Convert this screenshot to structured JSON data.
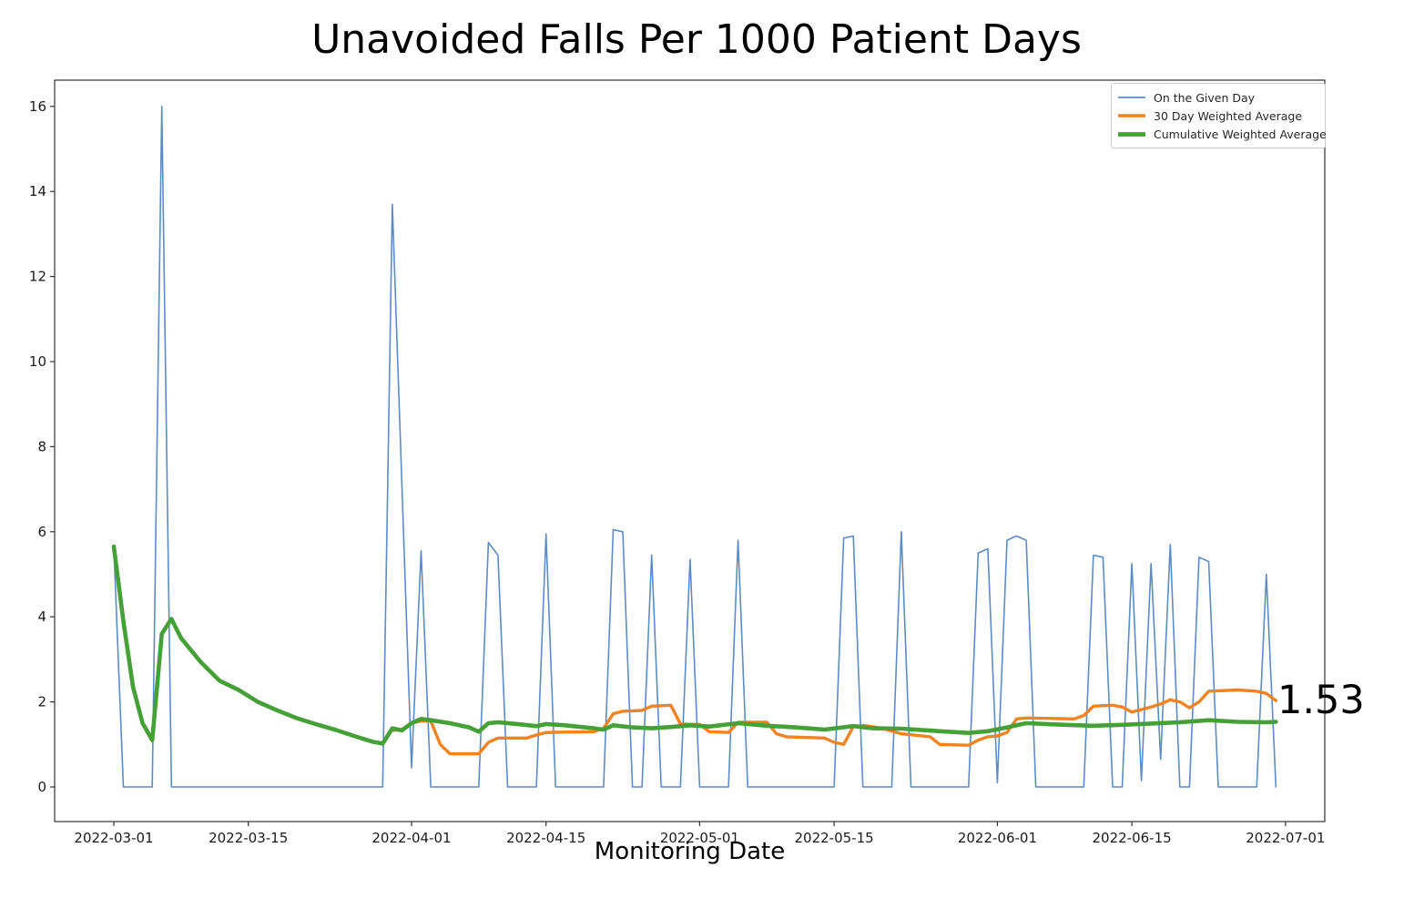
{
  "chart_data": {
    "type": "line",
    "title": "Unavoided Falls Per 1000 Patient Days",
    "xlabel": "Monitoring Date",
    "ylabel": "",
    "x_unit": "days since 2022-03-01",
    "ylim": [
      -0.82,
      16.62
    ],
    "y_ticks": [
      0,
      2,
      4,
      6,
      8,
      10,
      12,
      14,
      16
    ],
    "x_ticks": [
      {
        "label": "2022-03-01",
        "day": 0
      },
      {
        "label": "2022-03-15",
        "day": 14
      },
      {
        "label": "2022-04-01",
        "day": 31
      },
      {
        "label": "2022-04-15",
        "day": 45
      },
      {
        "label": "2022-05-01",
        "day": 61
      },
      {
        "label": "2022-05-15",
        "day": 75
      },
      {
        "label": "2022-06-01",
        "day": 92
      },
      {
        "label": "2022-06-15",
        "day": 106
      },
      {
        "label": "2022-07-01",
        "day": 122
      }
    ],
    "grid": false,
    "legend_position": "upper right",
    "series": [
      {
        "name": "On the Given Day",
        "color": "#5b8cc6",
        "width": 1.6,
        "points": [
          [
            0,
            5.65
          ],
          [
            1,
            0
          ],
          [
            4,
            0
          ],
          [
            5,
            16.0
          ],
          [
            6,
            0
          ],
          [
            28,
            0
          ],
          [
            29,
            13.7
          ],
          [
            30,
            7.1
          ],
          [
            31,
            0.45
          ],
          [
            32,
            5.55
          ],
          [
            33,
            0
          ],
          [
            38,
            0
          ],
          [
            39,
            5.75
          ],
          [
            40,
            5.45
          ],
          [
            41,
            0
          ],
          [
            44,
            0
          ],
          [
            45,
            5.95
          ],
          [
            46,
            0
          ],
          [
            51,
            0
          ],
          [
            52,
            6.05
          ],
          [
            53,
            6.0
          ],
          [
            54,
            0
          ],
          [
            55,
            0
          ],
          [
            56,
            5.45
          ],
          [
            57,
            0
          ],
          [
            59,
            0
          ],
          [
            60,
            5.35
          ],
          [
            61,
            0
          ],
          [
            64,
            0
          ],
          [
            65,
            5.8
          ],
          [
            66,
            0
          ],
          [
            75,
            0
          ],
          [
            76,
            5.85
          ],
          [
            77,
            5.9
          ],
          [
            78,
            0
          ],
          [
            81,
            0
          ],
          [
            82,
            6.0
          ],
          [
            83,
            0
          ],
          [
            89,
            0
          ],
          [
            90,
            5.5
          ],
          [
            91,
            5.6
          ],
          [
            92,
            0.1
          ],
          [
            93,
            5.8
          ],
          [
            94,
            5.9
          ],
          [
            95,
            5.8
          ],
          [
            96,
            0
          ],
          [
            101,
            0
          ],
          [
            102,
            5.45
          ],
          [
            103,
            5.4
          ],
          [
            104,
            0
          ],
          [
            105,
            0
          ],
          [
            106,
            5.25
          ],
          [
            107,
            0.15
          ],
          [
            108,
            5.25
          ],
          [
            109,
            0.65
          ],
          [
            110,
            5.7
          ],
          [
            111,
            0
          ],
          [
            112,
            0
          ],
          [
            113,
            5.4
          ],
          [
            114,
            5.3
          ],
          [
            115,
            0
          ],
          [
            119,
            0
          ],
          [
            120,
            5.0
          ],
          [
            121,
            0
          ]
        ]
      },
      {
        "name": "30 Day Weighted Average",
        "color": "#f28322",
        "width": 3.4,
        "points": [
          [
            29,
            1.33
          ],
          [
            30,
            1.35
          ],
          [
            31,
            1.5
          ],
          [
            32,
            1.55
          ],
          [
            33,
            1.55
          ],
          [
            34,
            1.0
          ],
          [
            35,
            0.78
          ],
          [
            38,
            0.78
          ],
          [
            39,
            1.05
          ],
          [
            40,
            1.15
          ],
          [
            43,
            1.15
          ],
          [
            44,
            1.22
          ],
          [
            45,
            1.28
          ],
          [
            50,
            1.3
          ],
          [
            51,
            1.38
          ],
          [
            52,
            1.72
          ],
          [
            53,
            1.78
          ],
          [
            55,
            1.8
          ],
          [
            56,
            1.9
          ],
          [
            58,
            1.92
          ],
          [
            59,
            1.48
          ],
          [
            61,
            1.47
          ],
          [
            62,
            1.3
          ],
          [
            64,
            1.28
          ],
          [
            65,
            1.52
          ],
          [
            68,
            1.52
          ],
          [
            69,
            1.25
          ],
          [
            70,
            1.18
          ],
          [
            74,
            1.15
          ],
          [
            75,
            1.05
          ],
          [
            76,
            1.0
          ],
          [
            77,
            1.42
          ],
          [
            78,
            1.45
          ],
          [
            80,
            1.38
          ],
          [
            82,
            1.25
          ],
          [
            85,
            1.18
          ],
          [
            86,
            1.0
          ],
          [
            89,
            0.98
          ],
          [
            90,
            1.1
          ],
          [
            91,
            1.18
          ],
          [
            92,
            1.2
          ],
          [
            93,
            1.28
          ],
          [
            94,
            1.6
          ],
          [
            95,
            1.62
          ],
          [
            100,
            1.6
          ],
          [
            101,
            1.68
          ],
          [
            102,
            1.9
          ],
          [
            104,
            1.92
          ],
          [
            105,
            1.88
          ],
          [
            106,
            1.76
          ],
          [
            107,
            1.82
          ],
          [
            108,
            1.88
          ],
          [
            109,
            1.95
          ],
          [
            110,
            2.05
          ],
          [
            111,
            2.0
          ],
          [
            112,
            1.86
          ],
          [
            113,
            2.0
          ],
          [
            114,
            2.25
          ],
          [
            117,
            2.28
          ],
          [
            119,
            2.25
          ],
          [
            120,
            2.2
          ],
          [
            121,
            2.03
          ]
        ]
      },
      {
        "name": "Cumulative Weighted Average",
        "color": "#45a037",
        "width": 4.6,
        "points": [
          [
            0,
            5.65
          ],
          [
            1,
            3.9
          ],
          [
            2,
            2.35
          ],
          [
            3,
            1.5
          ],
          [
            4,
            1.1
          ],
          [
            5,
            3.6
          ],
          [
            6,
            3.95
          ],
          [
            7,
            3.5
          ],
          [
            9,
            2.95
          ],
          [
            11,
            2.5
          ],
          [
            13,
            2.28
          ],
          [
            15,
            2.0
          ],
          [
            17,
            1.8
          ],
          [
            19,
            1.62
          ],
          [
            21,
            1.48
          ],
          [
            23,
            1.35
          ],
          [
            25,
            1.2
          ],
          [
            27,
            1.06
          ],
          [
            28,
            1.02
          ],
          [
            29,
            1.38
          ],
          [
            30,
            1.33
          ],
          [
            31,
            1.5
          ],
          [
            32,
            1.6
          ],
          [
            33,
            1.57
          ],
          [
            35,
            1.5
          ],
          [
            37,
            1.4
          ],
          [
            38,
            1.3
          ],
          [
            39,
            1.5
          ],
          [
            40,
            1.52
          ],
          [
            42,
            1.48
          ],
          [
            44,
            1.43
          ],
          [
            45,
            1.48
          ],
          [
            47,
            1.45
          ],
          [
            50,
            1.38
          ],
          [
            51,
            1.35
          ],
          [
            52,
            1.45
          ],
          [
            54,
            1.4
          ],
          [
            56,
            1.38
          ],
          [
            58,
            1.41
          ],
          [
            60,
            1.45
          ],
          [
            62,
            1.42
          ],
          [
            65,
            1.5
          ],
          [
            68,
            1.44
          ],
          [
            71,
            1.4
          ],
          [
            74,
            1.35
          ],
          [
            77,
            1.43
          ],
          [
            79,
            1.38
          ],
          [
            82,
            1.37
          ],
          [
            86,
            1.31
          ],
          [
            89,
            1.27
          ],
          [
            91,
            1.31
          ],
          [
            93,
            1.4
          ],
          [
            94,
            1.45
          ],
          [
            95,
            1.5
          ],
          [
            99,
            1.46
          ],
          [
            102,
            1.44
          ],
          [
            105,
            1.46
          ],
          [
            108,
            1.49
          ],
          [
            111,
            1.52
          ],
          [
            114,
            1.57
          ],
          [
            117,
            1.53
          ],
          [
            120,
            1.52
          ],
          [
            121,
            1.53
          ]
        ]
      }
    ],
    "annotation": {
      "text": "1.53",
      "day": 121,
      "value": 1.53
    }
  }
}
